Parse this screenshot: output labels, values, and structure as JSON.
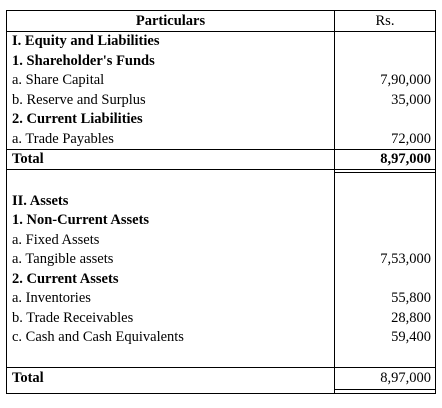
{
  "header": {
    "particulars": "Particulars",
    "amount": "Rs."
  },
  "section1": {
    "title": "I. Equity and Liabilities",
    "groups": [
      {
        "heading": "1. Shareholder's Funds",
        "items": [
          {
            "label": "a. Share Capital",
            "amount": "7,90,000"
          },
          {
            "label": "b. Reserve and Surplus",
            "amount": "35,000"
          }
        ]
      },
      {
        "heading": "2. Current Liabilities",
        "items": [
          {
            "label": "a. Trade Payables",
            "amount": "72,000"
          }
        ]
      }
    ],
    "total_label": "Total",
    "total_amount": "8,97,000"
  },
  "section2": {
    "title": "II. Assets",
    "groups": [
      {
        "heading": "1. Non-Current Assets",
        "items": [
          {
            "label": "a. Fixed Assets",
            "amount": ""
          },
          {
            "label": "a. Tangible assets",
            "amount": "7,53,000"
          }
        ]
      },
      {
        "heading": "2. Current Assets",
        "items": [
          {
            "label": "a. Inventories",
            "amount": "55,800"
          },
          {
            "label": "b. Trade Receivables",
            "amount": "28,800"
          },
          {
            "label": "c. Cash and Cash Equivalents",
            "amount": "59,400"
          }
        ]
      }
    ],
    "total_label": "Total",
    "total_amount": "8,97,000"
  }
}
